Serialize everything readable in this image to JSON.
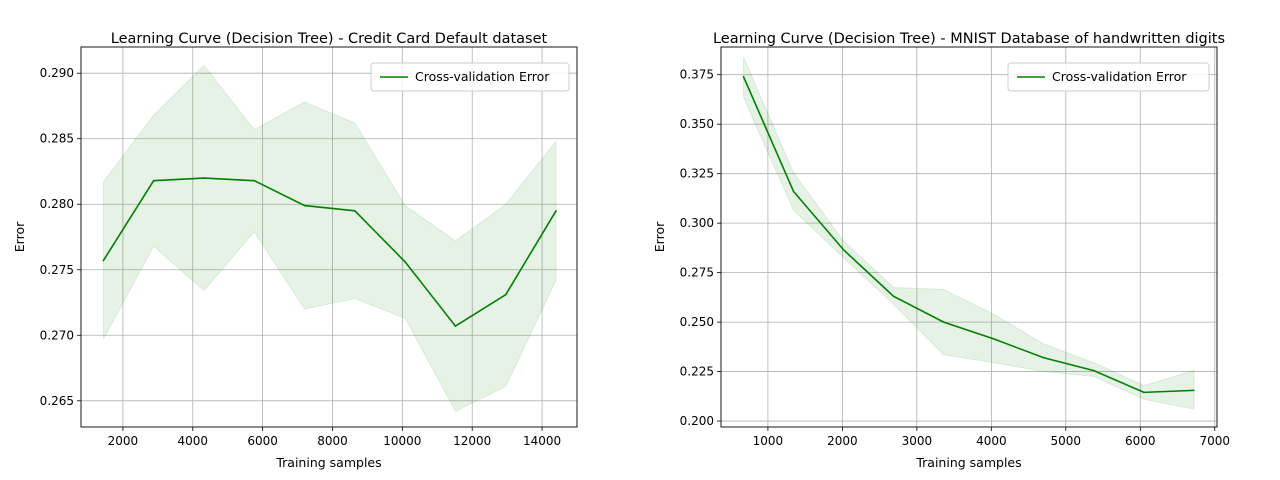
{
  "chart_data": [
    {
      "type": "line",
      "title": "Learning Curve (Decision Tree) - Credit Card Default dataset",
      "xlabel": "Training samples",
      "ylabel": "Error",
      "xlim": [
        800,
        15000
      ],
      "ylim": [
        0.263,
        0.292
      ],
      "xticks": [
        2000,
        4000,
        6000,
        8000,
        10000,
        12000,
        14000
      ],
      "xtick_labels": [
        "2000",
        "4000",
        "6000",
        "8000",
        "10000",
        "12000",
        "14000"
      ],
      "yticks": [
        0.265,
        0.27,
        0.275,
        0.28,
        0.285,
        0.29
      ],
      "ytick_labels": [
        "0.265",
        "0.270",
        "0.275",
        "0.280",
        "0.285",
        "0.290"
      ],
      "grid": true,
      "legend_position": "top-right",
      "colors": {
        "line": "#008000",
        "band": "#008000",
        "grid": "#b0b0b0"
      },
      "series": [
        {
          "name": "Cross-validation Error",
          "x": [
            1440,
            2880,
            4320,
            5760,
            7200,
            8640,
            10080,
            11520,
            12960,
            14400
          ],
          "y": [
            0.2757,
            0.2818,
            0.282,
            0.2818,
            0.2799,
            0.2795,
            0.2756,
            0.2707,
            0.2731,
            0.2795
          ],
          "upper": [
            0.2817,
            0.2868,
            0.2906,
            0.2857,
            0.2878,
            0.2862,
            0.2799,
            0.2772,
            0.28,
            0.2848
          ],
          "lower": [
            0.2697,
            0.2768,
            0.2734,
            0.2779,
            0.272,
            0.2728,
            0.2713,
            0.2642,
            0.2661,
            0.2742
          ]
        }
      ]
    },
    {
      "type": "line",
      "title": "Learning Curve (Decision Tree) - MNIST Database of handwritten digits",
      "xlabel": "Training samples",
      "ylabel": "Error",
      "xlim": [
        370,
        7030
      ],
      "ylim": [
        0.197,
        0.389
      ],
      "xticks": [
        1000,
        2000,
        3000,
        4000,
        5000,
        6000,
        7000
      ],
      "xtick_labels": [
        "1000",
        "2000",
        "3000",
        "4000",
        "5000",
        "6000",
        "7000"
      ],
      "yticks": [
        0.2,
        0.225,
        0.25,
        0.275,
        0.3,
        0.325,
        0.35,
        0.375
      ],
      "ytick_labels": [
        "0.200",
        "0.225",
        "0.250",
        "0.275",
        "0.300",
        "0.325",
        "0.350",
        "0.375"
      ],
      "grid": true,
      "legend_position": "top-right",
      "colors": {
        "line": "#008000",
        "band": "#008000",
        "grid": "#b0b0b0"
      },
      "series": [
        {
          "name": "Cross-validation Error",
          "x": [
            672,
            1344,
            2016,
            2688,
            3360,
            4032,
            4704,
            5376,
            6048,
            6720
          ],
          "y": [
            0.374,
            0.316,
            0.2865,
            0.263,
            0.25,
            0.2415,
            0.232,
            0.2255,
            0.2145,
            0.2155
          ],
          "upper": [
            0.384,
            0.3255,
            0.291,
            0.2675,
            0.2665,
            0.254,
            0.239,
            0.2295,
            0.218,
            0.2255
          ],
          "lower": [
            0.3635,
            0.3065,
            0.2825,
            0.259,
            0.2335,
            0.2295,
            0.225,
            0.2225,
            0.211,
            0.206
          ]
        }
      ]
    }
  ]
}
